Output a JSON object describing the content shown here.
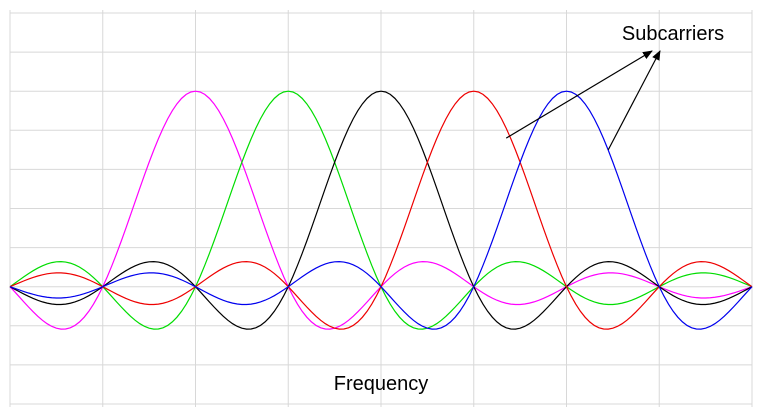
{
  "chart_data": {
    "type": "line",
    "xlabel": "Frequency",
    "annotations": [
      {
        "text": "Subcarriers"
      }
    ],
    "grid": true,
    "legend": "none",
    "x_range": [
      -4,
      4
    ],
    "y_range": [
      -0.6,
      1.4
    ],
    "x_grid_step": 1,
    "y_grid_step": 0.2,
    "sample_step": 0.05,
    "function": "sinc",
    "series": [
      {
        "center": -2,
        "color": "#ff00ff"
      },
      {
        "center": -1,
        "color": "#00dd00"
      },
      {
        "center": 0,
        "color": "#000000"
      },
      {
        "center": 1,
        "color": "#ee0000"
      },
      {
        "center": 2,
        "color": "#0000ee"
      }
    ],
    "arrow_targets": [
      {
        "x": 1.35,
        "y": 0.76
      },
      {
        "x": 2.45,
        "y": 0.7
      }
    ]
  }
}
